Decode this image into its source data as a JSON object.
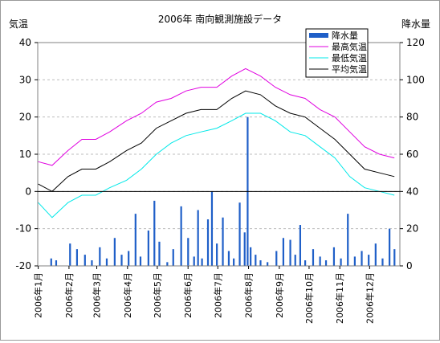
{
  "chart_data": {
    "type": "line",
    "title": "2006年 南向観測施設データ",
    "y_left_label": "気温",
    "y_right_label": "降水量",
    "y_left_range": [
      -20,
      40
    ],
    "y_left_ticks": [
      "40",
      "30",
      "20",
      "10",
      "0",
      "-10",
      "-20"
    ],
    "y_right_range": [
      0,
      120
    ],
    "y_right_ticks": [
      "120",
      "100",
      "80",
      "60",
      "40",
      "20",
      "0"
    ],
    "x_ticks": [
      "2006年1月",
      "2006年2月",
      "2006年3月",
      "2006年4月",
      "2006年5月",
      "2006年6月",
      "2006年7月",
      "2006年8月",
      "2006年9月",
      "2006年10月",
      "2006年11月",
      "2006年12月"
    ],
    "grid": true,
    "legend_position": "top-right",
    "series": [
      {
        "name": "降水量",
        "kind": "bar",
        "axis": "right",
        "color": "#1f5fc8",
        "points": [
          [
            14,
            4
          ],
          [
            19,
            3
          ],
          [
            33,
            12
          ],
          [
            40,
            9
          ],
          [
            48,
            6
          ],
          [
            55,
            3
          ],
          [
            63,
            10
          ],
          [
            70,
            4
          ],
          [
            78,
            15
          ],
          [
            85,
            6
          ],
          [
            92,
            8
          ],
          [
            99,
            28
          ],
          [
            104,
            5
          ],
          [
            112,
            19
          ],
          [
            118,
            35
          ],
          [
            123,
            13
          ],
          [
            131,
            2
          ],
          [
            137,
            9
          ],
          [
            145,
            32
          ],
          [
            152,
            15
          ],
          [
            158,
            5
          ],
          [
            162,
            30
          ],
          [
            166,
            4
          ],
          [
            172,
            25
          ],
          [
            176,
            40
          ],
          [
            181,
            12
          ],
          [
            187,
            26
          ],
          [
            193,
            8
          ],
          [
            198,
            4
          ],
          [
            204,
            34
          ],
          [
            209,
            18
          ],
          [
            212,
            80
          ],
          [
            215,
            10
          ],
          [
            220,
            6
          ],
          [
            225,
            3
          ],
          [
            232,
            2
          ],
          [
            241,
            8
          ],
          [
            248,
            15
          ],
          [
            255,
            14
          ],
          [
            260,
            6
          ],
          [
            265,
            22
          ],
          [
            270,
            3
          ],
          [
            278,
            9
          ],
          [
            285,
            5
          ],
          [
            291,
            3
          ],
          [
            299,
            10
          ],
          [
            306,
            4
          ],
          [
            313,
            28
          ],
          [
            320,
            5
          ],
          [
            327,
            8
          ],
          [
            334,
            6
          ],
          [
            341,
            12
          ],
          [
            348,
            4
          ],
          [
            355,
            20
          ],
          [
            360,
            9
          ]
        ]
      },
      {
        "name": "最高気温",
        "kind": "line",
        "axis": "left",
        "color": "#e000e0",
        "points": [
          [
            1,
            8
          ],
          [
            15,
            7
          ],
          [
            31,
            11
          ],
          [
            45,
            14
          ],
          [
            59,
            14
          ],
          [
            73,
            16
          ],
          [
            90,
            19
          ],
          [
            105,
            21
          ],
          [
            120,
            24
          ],
          [
            135,
            25
          ],
          [
            150,
            27
          ],
          [
            165,
            28
          ],
          [
            181,
            28
          ],
          [
            196,
            31
          ],
          [
            210,
            33
          ],
          [
            225,
            31
          ],
          [
            240,
            28
          ],
          [
            255,
            26
          ],
          [
            270,
            25
          ],
          [
            285,
            22
          ],
          [
            300,
            20
          ],
          [
            315,
            16
          ],
          [
            330,
            12
          ],
          [
            345,
            10
          ],
          [
            360,
            9
          ]
        ]
      },
      {
        "name": "最低気温",
        "kind": "line",
        "axis": "left",
        "color": "#00e8e8",
        "points": [
          [
            1,
            -3
          ],
          [
            15,
            -7
          ],
          [
            31,
            -3
          ],
          [
            45,
            -1
          ],
          [
            59,
            -1
          ],
          [
            73,
            1
          ],
          [
            90,
            3
          ],
          [
            105,
            6
          ],
          [
            120,
            10
          ],
          [
            135,
            13
          ],
          [
            150,
            15
          ],
          [
            165,
            16
          ],
          [
            181,
            17
          ],
          [
            196,
            19
          ],
          [
            210,
            21
          ],
          [
            225,
            21
          ],
          [
            240,
            19
          ],
          [
            255,
            16
          ],
          [
            270,
            15
          ],
          [
            285,
            12
          ],
          [
            300,
            9
          ],
          [
            315,
            4
          ],
          [
            330,
            1
          ],
          [
            345,
            0
          ],
          [
            360,
            -1
          ]
        ]
      },
      {
        "name": "平均気温",
        "kind": "line",
        "axis": "left",
        "color": "#000000",
        "points": [
          [
            1,
            2
          ],
          [
            15,
            0
          ],
          [
            31,
            4
          ],
          [
            45,
            6
          ],
          [
            59,
            6
          ],
          [
            73,
            8
          ],
          [
            90,
            11
          ],
          [
            105,
            13
          ],
          [
            120,
            17
          ],
          [
            135,
            19
          ],
          [
            150,
            21
          ],
          [
            165,
            22
          ],
          [
            181,
            22
          ],
          [
            196,
            25
          ],
          [
            210,
            27
          ],
          [
            225,
            26
          ],
          [
            240,
            23
          ],
          [
            255,
            21
          ],
          [
            270,
            20
          ],
          [
            285,
            17
          ],
          [
            300,
            14
          ],
          [
            315,
            10
          ],
          [
            330,
            6
          ],
          [
            345,
            5
          ],
          [
            360,
            4
          ]
        ]
      }
    ]
  }
}
